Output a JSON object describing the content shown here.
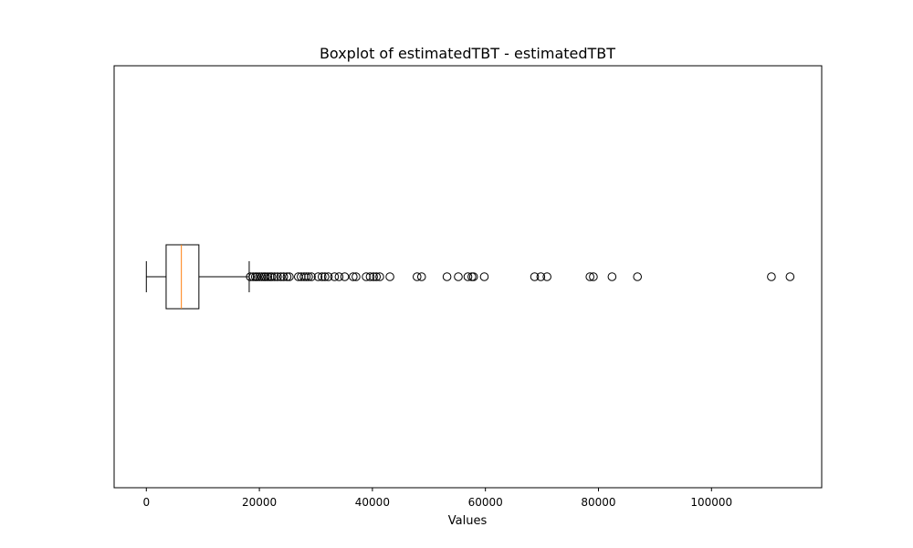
{
  "chart_data": {
    "type": "boxplot",
    "orientation": "horizontal",
    "title": "Boxplot of estimatedTBT - estimatedTBT",
    "xlabel": "Values",
    "ylabel": "",
    "xlim": [
      -5700,
      119500
    ],
    "xticks": [
      0,
      20000,
      40000,
      60000,
      80000,
      100000
    ],
    "xtick_labels": [
      "0",
      "20000",
      "40000",
      "60000",
      "80000",
      "100000"
    ],
    "grid": false,
    "box": {
      "whisker_low": 0,
      "q1": 3500,
      "median": 6200,
      "q3": 9300,
      "whisker_high": 18200
    },
    "outliers": [
      18400,
      18900,
      19300,
      19600,
      20000,
      20400,
      20800,
      21100,
      21500,
      21900,
      22200,
      22700,
      23200,
      23800,
      24300,
      24900,
      25300,
      26900,
      27400,
      27900,
      28300,
      28700,
      29200,
      30400,
      31100,
      31600,
      32200,
      33300,
      34100,
      35100,
      36600,
      37100,
      38900,
      39600,
      40200,
      40700,
      41300,
      43100,
      47900,
      48700,
      53200,
      55200,
      56900,
      57600,
      57900,
      59800,
      68700,
      69800,
      70900,
      78500,
      79100,
      82400,
      86900,
      110600,
      113900
    ],
    "colors": {
      "box": "#000000",
      "median": "#ff7f0e",
      "outlier_edge": "#000000"
    }
  }
}
